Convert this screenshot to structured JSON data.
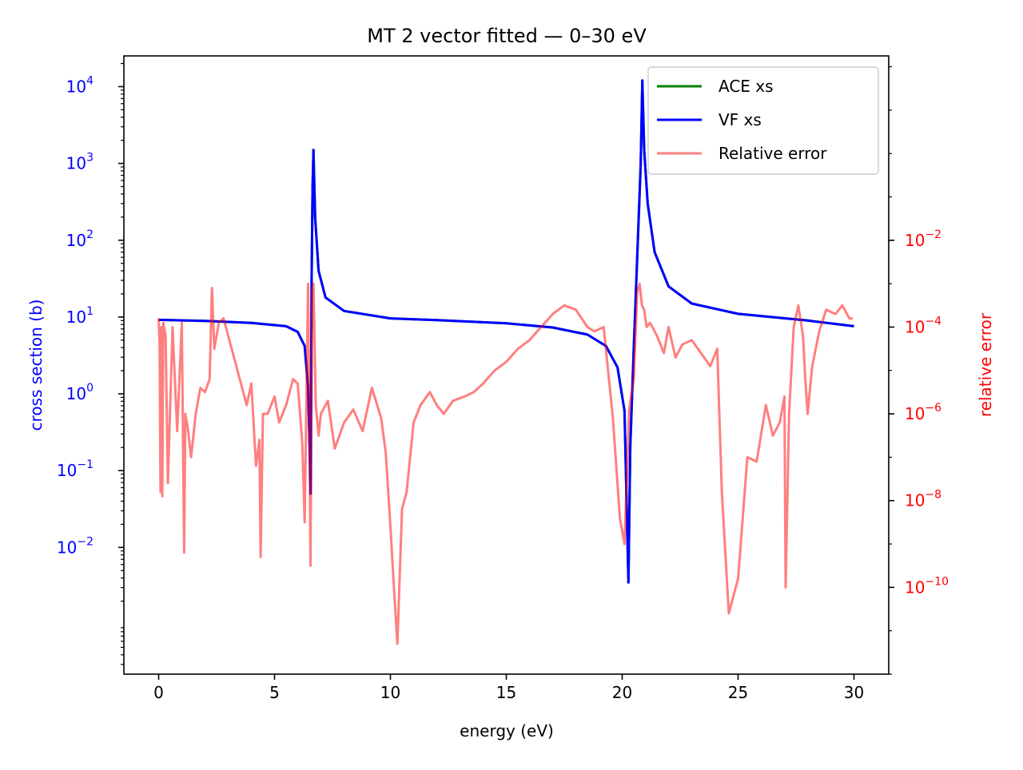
{
  "chart_data": {
    "type": "line",
    "title": "MT 2 vector fitted — 0–30 eV",
    "xlabel": "energy (eV)",
    "ylabel": "cross section (b)",
    "y2label": "relative error",
    "xlim": [
      -1.5,
      31.5
    ],
    "ylim_log10": [
      -3.65,
      4.4
    ],
    "y2lim_log10": [
      -12.0,
      2.25
    ],
    "x_ticks": [
      {
        "v": 0,
        "label": "0"
      },
      {
        "v": 5,
        "label": "5"
      },
      {
        "v": 10,
        "label": "10"
      },
      {
        "v": 15,
        "label": "15"
      },
      {
        "v": 20,
        "label": "20"
      },
      {
        "v": 25,
        "label": "25"
      },
      {
        "v": 30,
        "label": "30"
      }
    ],
    "y_ticks": [
      {
        "e": -2,
        "base": "10",
        "exp": "−2"
      },
      {
        "e": -1,
        "base": "10",
        "exp": "−1"
      },
      {
        "e": 0,
        "base": "10",
        "exp": "0"
      },
      {
        "e": 1,
        "base": "10",
        "exp": "1"
      },
      {
        "e": 2,
        "base": "10",
        "exp": "2"
      },
      {
        "e": 3,
        "base": "10",
        "exp": "3"
      },
      {
        "e": 4,
        "base": "10",
        "exp": "4"
      }
    ],
    "y2_ticks": [
      {
        "e": -10,
        "base": "10",
        "exp": "−10"
      },
      {
        "e": -8,
        "base": "10",
        "exp": "−8"
      },
      {
        "e": -6,
        "base": "10",
        "exp": "−6"
      },
      {
        "e": -4,
        "base": "10",
        "exp": "−4"
      },
      {
        "e": -2,
        "base": "10",
        "exp": "−2"
      }
    ],
    "legend_position": "top-right",
    "series": [
      {
        "name": "ACE xs",
        "color": "#008000",
        "axis": "left",
        "x": [
          0,
          2,
          4,
          5.5,
          6.0,
          6.3,
          6.45,
          6.52,
          6.56,
          6.6,
          6.64,
          6.68,
          6.75,
          6.9,
          7.2,
          8,
          10,
          12,
          15,
          17,
          18.5,
          19.3,
          19.8,
          20.1,
          20.27,
          20.35,
          20.5,
          20.65,
          20.8,
          20.87,
          20.95,
          21.1,
          21.4,
          22,
          23,
          25,
          28,
          30
        ],
        "y": [
          9.2,
          8.9,
          8.4,
          7.6,
          6.4,
          4.2,
          1.2,
          0.18,
          0.05,
          30,
          500,
          1500,
          200,
          40,
          18,
          12,
          9.6,
          9.1,
          8.3,
          7.3,
          5.9,
          4.2,
          2.2,
          0.6,
          0.0035,
          0.2,
          4,
          60,
          1000,
          12000,
          1500,
          300,
          70,
          25,
          15,
          11,
          9,
          7.6
        ]
      },
      {
        "name": "VF xs",
        "color": "#0000ff",
        "axis": "left",
        "x": [
          0,
          2,
          4,
          5.5,
          6.0,
          6.3,
          6.45,
          6.52,
          6.56,
          6.6,
          6.64,
          6.68,
          6.75,
          6.9,
          7.2,
          8,
          10,
          12,
          15,
          17,
          18.5,
          19.3,
          19.8,
          20.1,
          20.27,
          20.35,
          20.5,
          20.65,
          20.8,
          20.87,
          20.95,
          21.1,
          21.4,
          22,
          23,
          25,
          28,
          30
        ],
        "y": [
          9.2,
          8.9,
          8.4,
          7.6,
          6.4,
          4.2,
          1.2,
          0.18,
          0.05,
          30,
          500,
          1500,
          200,
          40,
          18,
          12,
          9.6,
          9.1,
          8.3,
          7.3,
          5.9,
          4.2,
          2.2,
          0.6,
          0.0035,
          0.2,
          4,
          60,
          1000,
          12000,
          1500,
          300,
          70,
          25,
          15,
          11,
          9,
          7.6
        ]
      },
      {
        "name": "Relative error",
        "color": "#ff0000",
        "opacity": 0.5,
        "axis": "right",
        "x": [
          0.0,
          0.04,
          0.08,
          0.12,
          0.16,
          0.2,
          0.3,
          0.4,
          0.6,
          0.8,
          1.0,
          1.1,
          1.15,
          1.25,
          1.4,
          1.6,
          1.8,
          2.0,
          2.2,
          2.3,
          2.4,
          2.6,
          2.8,
          3.0,
          3.3,
          3.6,
          3.8,
          4.0,
          4.2,
          4.35,
          4.4,
          4.5,
          4.7,
          5.0,
          5.2,
          5.5,
          5.8,
          6.0,
          6.2,
          6.3,
          6.45,
          6.55,
          6.62,
          6.68,
          6.78,
          6.9,
          7.0,
          7.3,
          7.6,
          8.0,
          8.4,
          8.8,
          9.2,
          9.6,
          9.8,
          10.0,
          10.15,
          10.3,
          10.5,
          10.7,
          11.0,
          11.3,
          11.7,
          12.0,
          12.3,
          12.7,
          13.2,
          13.6,
          14.0,
          14.5,
          15.0,
          15.5,
          16.0,
          16.5,
          17.0,
          17.5,
          18.0,
          18.5,
          18.8,
          19.2,
          19.6,
          19.9,
          20.1,
          20.3,
          20.5,
          20.65,
          20.75,
          20.85,
          20.95,
          21.05,
          21.2,
          21.5,
          21.8,
          22.0,
          22.3,
          22.6,
          23.0,
          23.4,
          23.8,
          24.1,
          24.3,
          24.6,
          25.0,
          25.4,
          25.8,
          26.2,
          26.5,
          26.8,
          27.0,
          27.05,
          27.2,
          27.4,
          27.6,
          27.8,
          27.9,
          28.0,
          28.2,
          28.5,
          28.8,
          29.2,
          29.5,
          29.8,
          29.95
        ],
        "y_log10": [
          -3.8,
          -4.4,
          -7.8,
          -4.0,
          -7.9,
          -3.9,
          -4.2,
          -7.6,
          -4.0,
          -6.4,
          -3.9,
          -9.2,
          -6.0,
          -6.3,
          -7.0,
          -6.0,
          -5.4,
          -5.5,
          -5.2,
          -3.1,
          -4.5,
          -3.9,
          -3.8,
          -4.2,
          -4.8,
          -5.4,
          -5.8,
          -5.3,
          -7.2,
          -6.6,
          -9.3,
          -6.0,
          -6.0,
          -5.6,
          -6.2,
          -5.8,
          -5.2,
          -5.3,
          -6.7,
          -8.5,
          -3.0,
          -9.5,
          -3.2,
          -3.0,
          -5.8,
          -6.5,
          -6.0,
          -5.7,
          -6.8,
          -6.2,
          -5.9,
          -6.4,
          -5.4,
          -6.1,
          -6.9,
          -8.6,
          -10.0,
          -11.3,
          -8.2,
          -7.8,
          -6.2,
          -5.8,
          -5.5,
          -5.8,
          -6.0,
          -5.7,
          -5.6,
          -5.5,
          -5.3,
          -5.0,
          -4.8,
          -4.5,
          -4.3,
          -4.0,
          -3.7,
          -3.5,
          -3.6,
          -4.0,
          -4.1,
          -4.0,
          -6.1,
          -8.4,
          -9.0,
          -5.9,
          -5.2,
          -3.2,
          -3.0,
          -3.5,
          -3.6,
          -4.0,
          -3.9,
          -4.2,
          -4.6,
          -4.0,
          -4.7,
          -4.4,
          -4.3,
          -4.6,
          -4.9,
          -4.5,
          -7.8,
          -10.6,
          -9.8,
          -7.0,
          -7.1,
          -5.8,
          -6.5,
          -6.2,
          -5.6,
          -10.0,
          -6.0,
          -4.0,
          -3.5,
          -4.2,
          -5.2,
          -6.0,
          -4.9,
          -4.1,
          -3.6,
          -3.7,
          -3.5,
          -3.8,
          -3.8
        ]
      }
    ]
  }
}
